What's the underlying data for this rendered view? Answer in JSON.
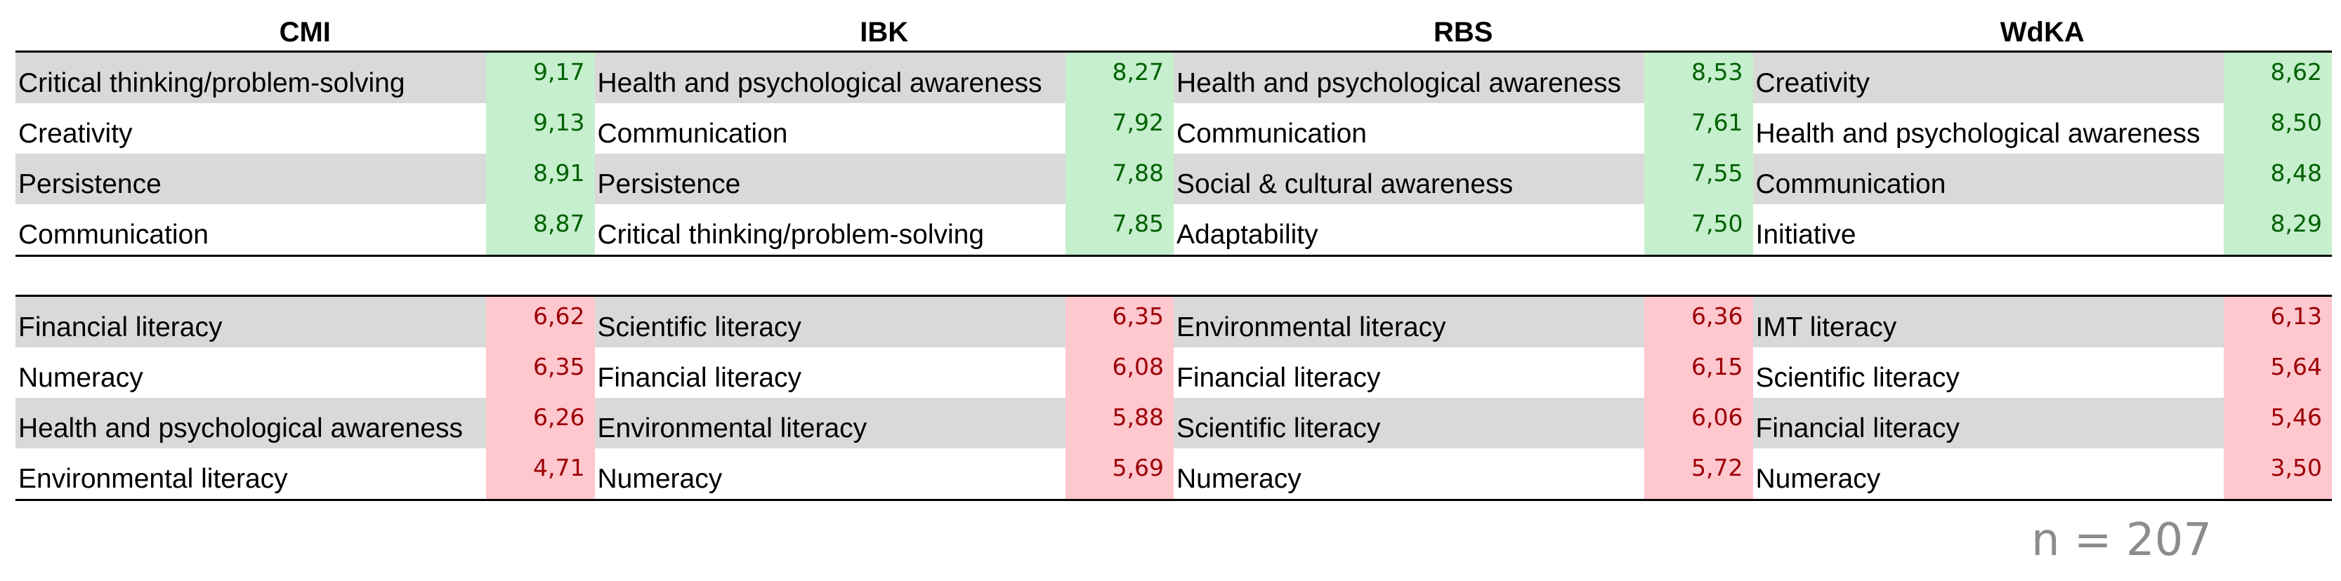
{
  "columns": [
    "CMI",
    "IBK",
    "RBS",
    "WdKA"
  ],
  "top_rows": [
    {
      "cells": [
        {
          "label": "Critical thinking/problem-solving",
          "value": "9,17"
        },
        {
          "label": "Health and psychological awareness",
          "value": "8,27"
        },
        {
          "label": "Health and psychological awareness",
          "value": "8,53"
        },
        {
          "label": "Creativity",
          "value": "8,62"
        }
      ]
    },
    {
      "cells": [
        {
          "label": "Creativity",
          "value": "9,13"
        },
        {
          "label": "Communication",
          "value": "7,92"
        },
        {
          "label": "Communication",
          "value": "7,61"
        },
        {
          "label": "Health and psychological awareness",
          "value": "8,50"
        }
      ]
    },
    {
      "cells": [
        {
          "label": "Persistence",
          "value": "8,91"
        },
        {
          "label": "Persistence",
          "value": "7,88"
        },
        {
          "label": "Social & cultural awareness",
          "value": "7,55"
        },
        {
          "label": "Communication",
          "value": "8,48"
        }
      ]
    },
    {
      "cells": [
        {
          "label": "Communication",
          "value": "8,87"
        },
        {
          "label": "Critical thinking/problem-solving",
          "value": "7,85"
        },
        {
          "label": "Adaptability",
          "value": "7,50"
        },
        {
          "label": "Initiative",
          "value": "8,29"
        }
      ]
    }
  ],
  "bottom_rows": [
    {
      "cells": [
        {
          "label": "Financial literacy",
          "value": "6,62"
        },
        {
          "label": "Scientific literacy",
          "value": "6,35"
        },
        {
          "label": "Environmental literacy",
          "value": "6,36"
        },
        {
          "label": "IMT literacy",
          "value": "6,13"
        }
      ]
    },
    {
      "cells": [
        {
          "label": "Numeracy",
          "value": "6,35"
        },
        {
          "label": "Financial literacy",
          "value": "6,08"
        },
        {
          "label": "Financial literacy",
          "value": "6,15"
        },
        {
          "label": "Scientific literacy",
          "value": "5,64"
        }
      ]
    },
    {
      "cells": [
        {
          "label": "Health and psychological awareness",
          "value": "6,26"
        },
        {
          "label": "Environmental literacy",
          "value": "5,88"
        },
        {
          "label": "Scientific literacy",
          "value": "6,06"
        },
        {
          "label": "Financial literacy",
          "value": "5,46"
        }
      ]
    },
    {
      "cells": [
        {
          "label": "Environmental literacy",
          "value": "4,71"
        },
        {
          "label": "Numeracy",
          "value": "5,69"
        },
        {
          "label": "Numeracy",
          "value": "5,72"
        },
        {
          "label": "Numeracy",
          "value": "3,50"
        }
      ]
    }
  ],
  "colors": {
    "row_shade": "#d9d9d9",
    "high_fill": "#c6efce",
    "high_text": "#006100",
    "low_fill": "#ffc7ce",
    "low_text": "#9c0006"
  },
  "sample_size": "n = 207"
}
